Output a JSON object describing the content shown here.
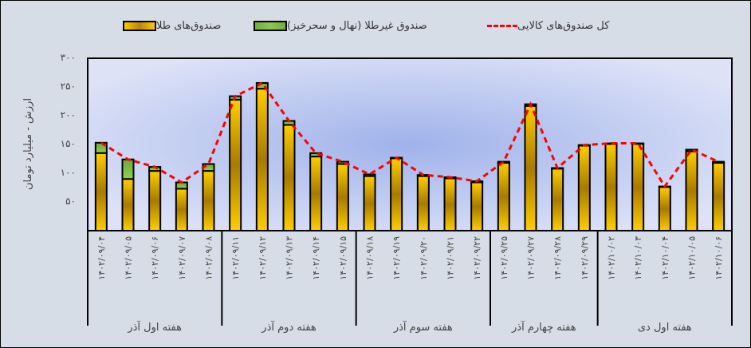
{
  "legend": {
    "gold": "صندوق‌های طلا",
    "nongold": "صندوق غیرطلا (نهال و سحرخیز)",
    "total": "کل صندوق‌های کالایی"
  },
  "colors": {
    "gold": "#f5b800",
    "gold_dark": "#a87a00",
    "green": "#7bbd45",
    "line": "#ff0000",
    "plot_bg_center": "#9fb2ea",
    "plot_bg_edge": "#dde2f7",
    "page_bg": "#d6dde6"
  },
  "chart_data": {
    "type": "bar",
    "stacked": true,
    "title": "",
    "xlabel": "",
    "ylabel": "ارزش - میلیارد تومان",
    "ylim": [
      0,
      300
    ],
    "yticks": [
      "۵۰",
      "۱۰۰",
      "۱۵۰",
      "۲۰۰",
      "۲۵۰",
      "۳۰۰"
    ],
    "ytick_values": [
      50,
      100,
      150,
      200,
      250,
      300
    ],
    "grid": false,
    "legend_position": "top",
    "categories": [
      "۱۴۰۲/۰۹/۰۴",
      "۱۴۰۲/۰۹/۰۵",
      "۱۴۰۲/۰۹/۰۶",
      "۱۴۰۲/۰۹/۰۷",
      "۱۴۰۲/۰۹/۰۸",
      "۱۴۰۲/۰۹/۱۱",
      "۱۴۰۲/۰۹/۱۲",
      "۱۴۰۲/۰۹/۱۳",
      "۱۴۰۲/۰۹/۱۴",
      "۱۴۰۲/۰۹/۱۵",
      "۱۴۰۲/۰۹/۱۸",
      "۱۴۰۲/۰۹/۱۹",
      "۱۴۰۲/۰۹/۲۰",
      "۱۴۰۲/۰۹/۲۱",
      "۱۴۰۲/۰۹/۲۲",
      "۱۴۰۲/۰۹/۲۵",
      "۱۴۰۲/۰۹/۲۷",
      "۱۴۰۲/۰۹/۲۸",
      "۱۴۰۲/۰۹/۲۹",
      "۱۴۰۲/۱۰/۰۲",
      "۱۴۰۲/۱۰/۰۳",
      "۱۴۰۲/۱۰/۰۴",
      "۱۴۰۲/۱۰/۰۵",
      "۱۴۰۲/۱۰/۰۶"
    ],
    "groups": [
      {
        "label": "هفته اول آذر",
        "count": 5
      },
      {
        "label": "هفته دوم آذر",
        "count": 5
      },
      {
        "label": "هفته سوم آذر",
        "count": 5
      },
      {
        "label": "هفته چهارم آذر",
        "count": 4
      },
      {
        "label": "هفته اول دی",
        "count": 5
      }
    ],
    "series": [
      {
        "name": "صندوق‌های طلا",
        "type": "bar",
        "values": [
          135,
          90,
          104,
          73,
          104,
          228,
          247,
          184,
          129,
          116,
          95,
          126,
          95,
          91,
          84,
          118,
          217,
          108,
          148,
          151,
          151,
          76,
          138,
          118
        ]
      },
      {
        "name": "صندوق غیرطلا (نهال و سحرخیز)",
        "type": "bar",
        "values": [
          18,
          34,
          7,
          11,
          12,
          6,
          10,
          7,
          6,
          4,
          3,
          1,
          2,
          2,
          2,
          2,
          3,
          1,
          1,
          1,
          1,
          1,
          3,
          2
        ]
      },
      {
        "name": "کل صندوق‌های کالایی",
        "type": "line",
        "style": "dashed",
        "values": [
          153,
          124,
          111,
          84,
          116,
          234,
          257,
          191,
          135,
          120,
          98,
          127,
          97,
          93,
          86,
          120,
          220,
          109,
          149,
          152,
          152,
          77,
          141,
          120
        ]
      }
    ]
  }
}
